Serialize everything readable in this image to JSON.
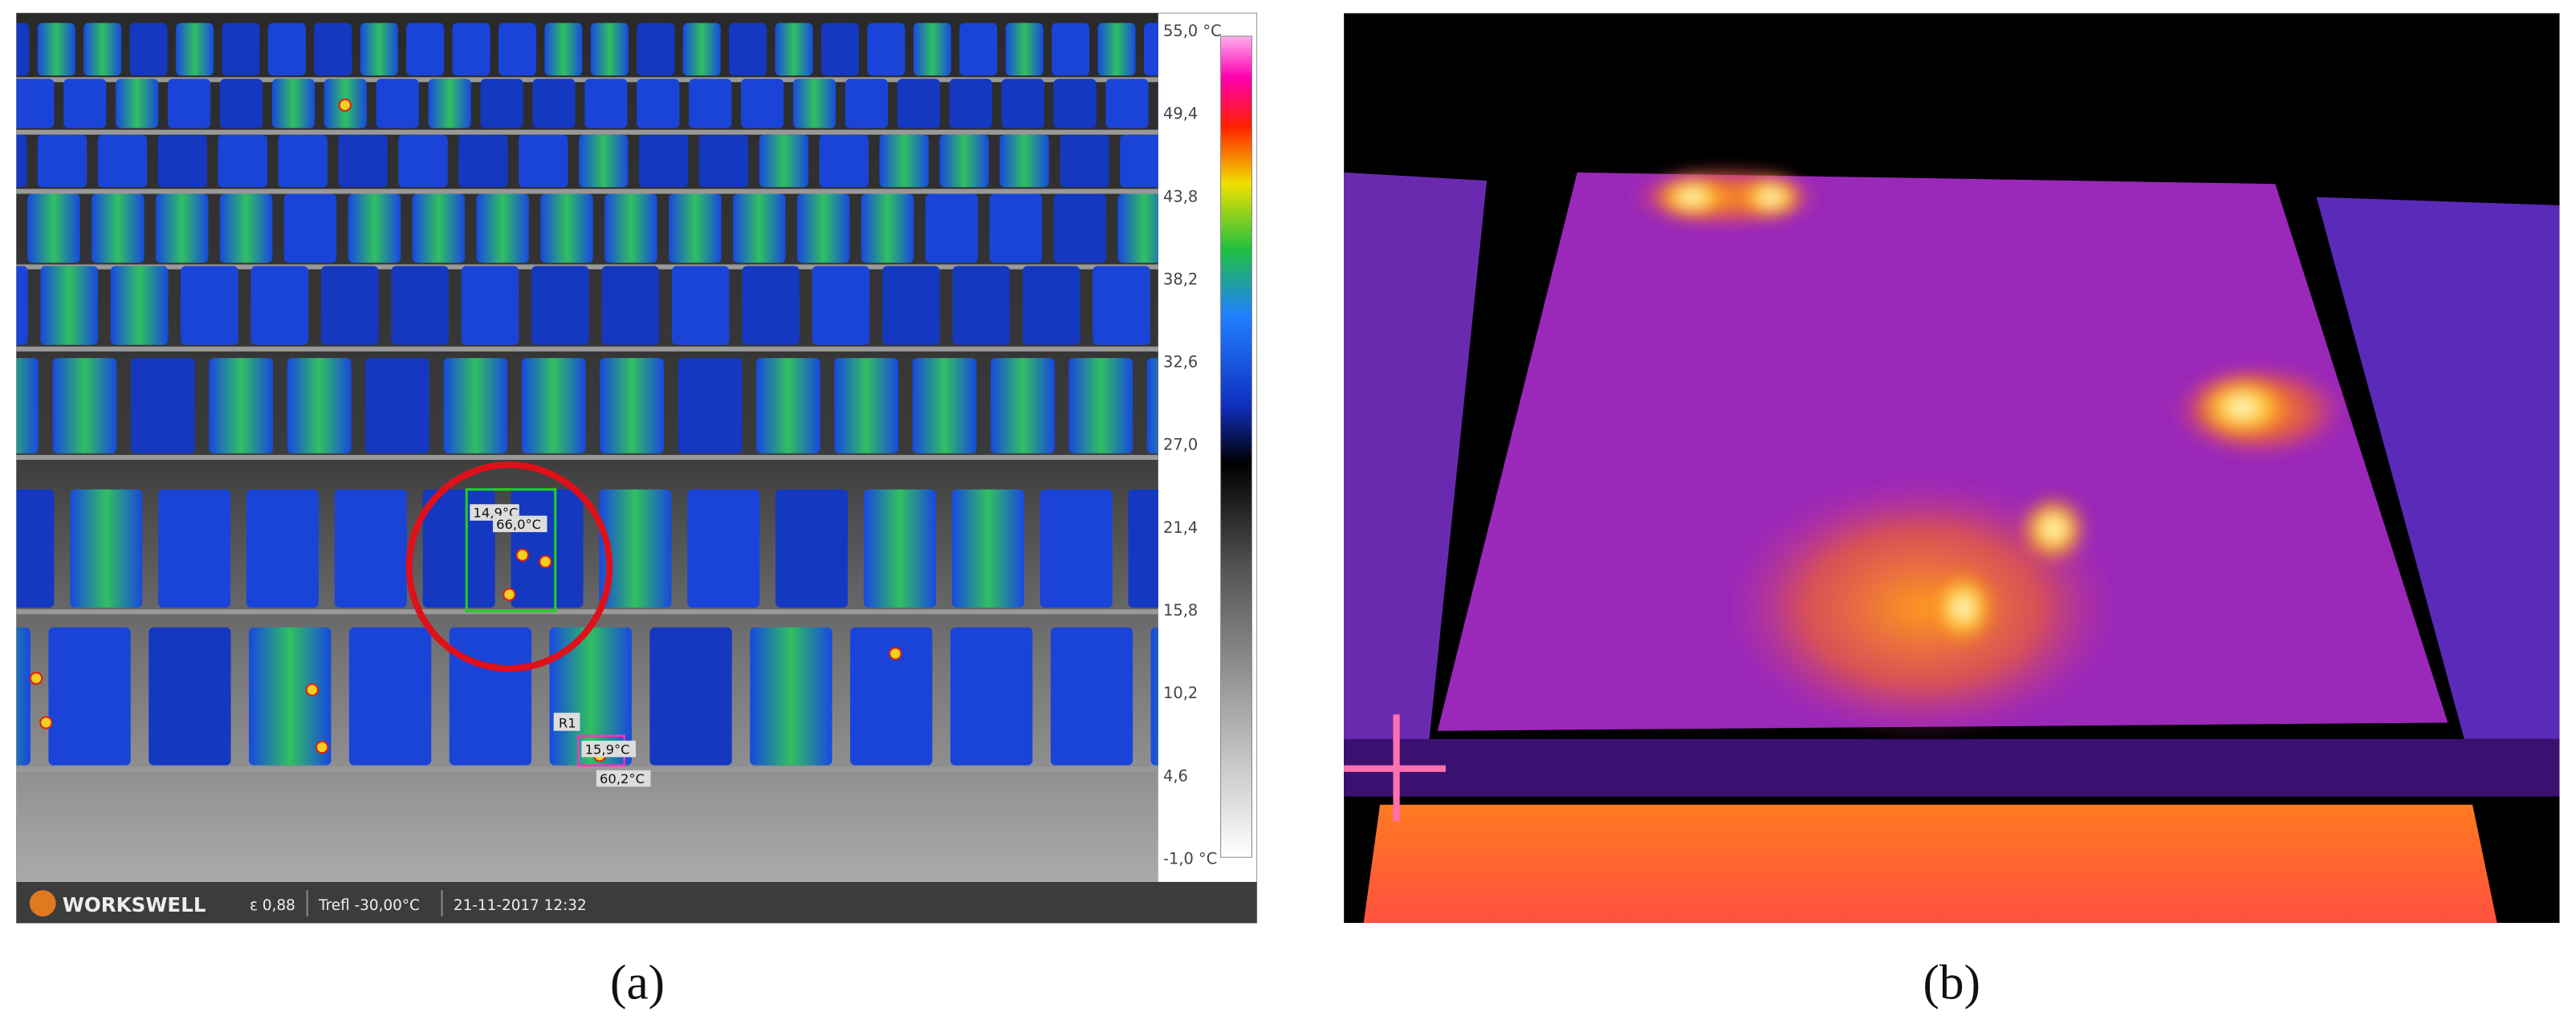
{
  "panel_a": {
    "scale_labels": [
      "55,0 °C",
      "49,4",
      "43,8",
      "38,2",
      "32,6",
      "27,0",
      "21,4",
      "15,8",
      "10,2",
      "4,6",
      "-1,0 °C"
    ],
    "footer": {
      "brand": "WORKSWELL",
      "emissivity": "ε 0,88",
      "reflected": "Trefl -30,00°C",
      "timestamp": "21-11-2017 12:32"
    },
    "overlays": {
      "box_min": "14,9°C",
      "box_max": "66,0°C",
      "region": "R1",
      "region_min": "15,9°C",
      "region_max": "60,2°C"
    },
    "caption": "(a)"
  },
  "panel_b": {
    "caption": "(b)"
  }
}
